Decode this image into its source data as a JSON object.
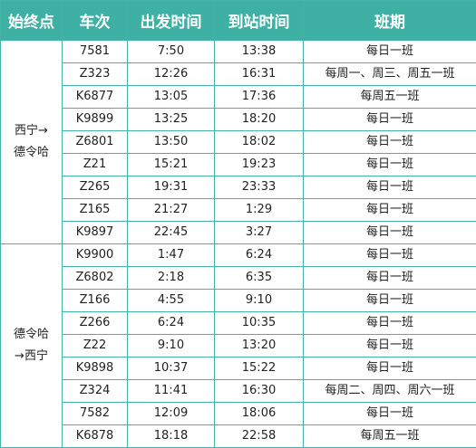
{
  "headers": [
    "始终点",
    "车次",
    "出发时间",
    "到站时间",
    "班期"
  ],
  "colors": {
    "header_bg": "#3fb0a4",
    "border": "#46b3a8",
    "header_text": "#ffffff"
  },
  "groups": [
    {
      "route_line1": "西宁→",
      "route_line2": "德令哈",
      "rows": [
        {
          "train": "7581",
          "depart": "7:50",
          "arrive": "13:38",
          "schedule": "每日一班"
        },
        {
          "train": "Z323",
          "depart": "12:26",
          "arrive": "16:31",
          "schedule": "每周一、周三、周五一班"
        },
        {
          "train": "K6877",
          "depart": "13:05",
          "arrive": "17:36",
          "schedule": "每周五一班"
        },
        {
          "train": "K9899",
          "depart": "13:25",
          "arrive": "18:20",
          "schedule": "每日一班"
        },
        {
          "train": "Z6801",
          "depart": "13:50",
          "arrive": "18:02",
          "schedule": "每日一班"
        },
        {
          "train": "Z21",
          "depart": "15:21",
          "arrive": "19:23",
          "schedule": "每日一班"
        },
        {
          "train": "Z265",
          "depart": "19:31",
          "arrive": "23:33",
          "schedule": "每日一班"
        },
        {
          "train": "Z165",
          "depart": "21:27",
          "arrive": "1:29",
          "schedule": "每日一班"
        },
        {
          "train": "K9897",
          "depart": "22:45",
          "arrive": "3:27",
          "schedule": "每日一班"
        }
      ]
    },
    {
      "route_line1": "德令哈",
      "route_line2": "→西宁",
      "rows": [
        {
          "train": "K9900",
          "depart": "1:47",
          "arrive": "6:24",
          "schedule": "每日一班"
        },
        {
          "train": "Z6802",
          "depart": "2:18",
          "arrive": "6:35",
          "schedule": "每日一班"
        },
        {
          "train": "Z166",
          "depart": "4:55",
          "arrive": "9:10",
          "schedule": "每日一班"
        },
        {
          "train": "Z266",
          "depart": "6:24",
          "arrive": "10:35",
          "schedule": "每日一班"
        },
        {
          "train": "Z22",
          "depart": "9:10",
          "arrive": "13:20",
          "schedule": "每日一班"
        },
        {
          "train": "K9898",
          "depart": "10:37",
          "arrive": "15:22",
          "schedule": "每日一班"
        },
        {
          "train": "Z324",
          "depart": "11:41",
          "arrive": "16:30",
          "schedule": "每周二、周四、周六一班"
        },
        {
          "train": "7582",
          "depart": "12:09",
          "arrive": "18:06",
          "schedule": "每日一班"
        },
        {
          "train": "K6878",
          "depart": "18:18",
          "arrive": "22:58",
          "schedule": "每周五一班"
        }
      ]
    }
  ]
}
